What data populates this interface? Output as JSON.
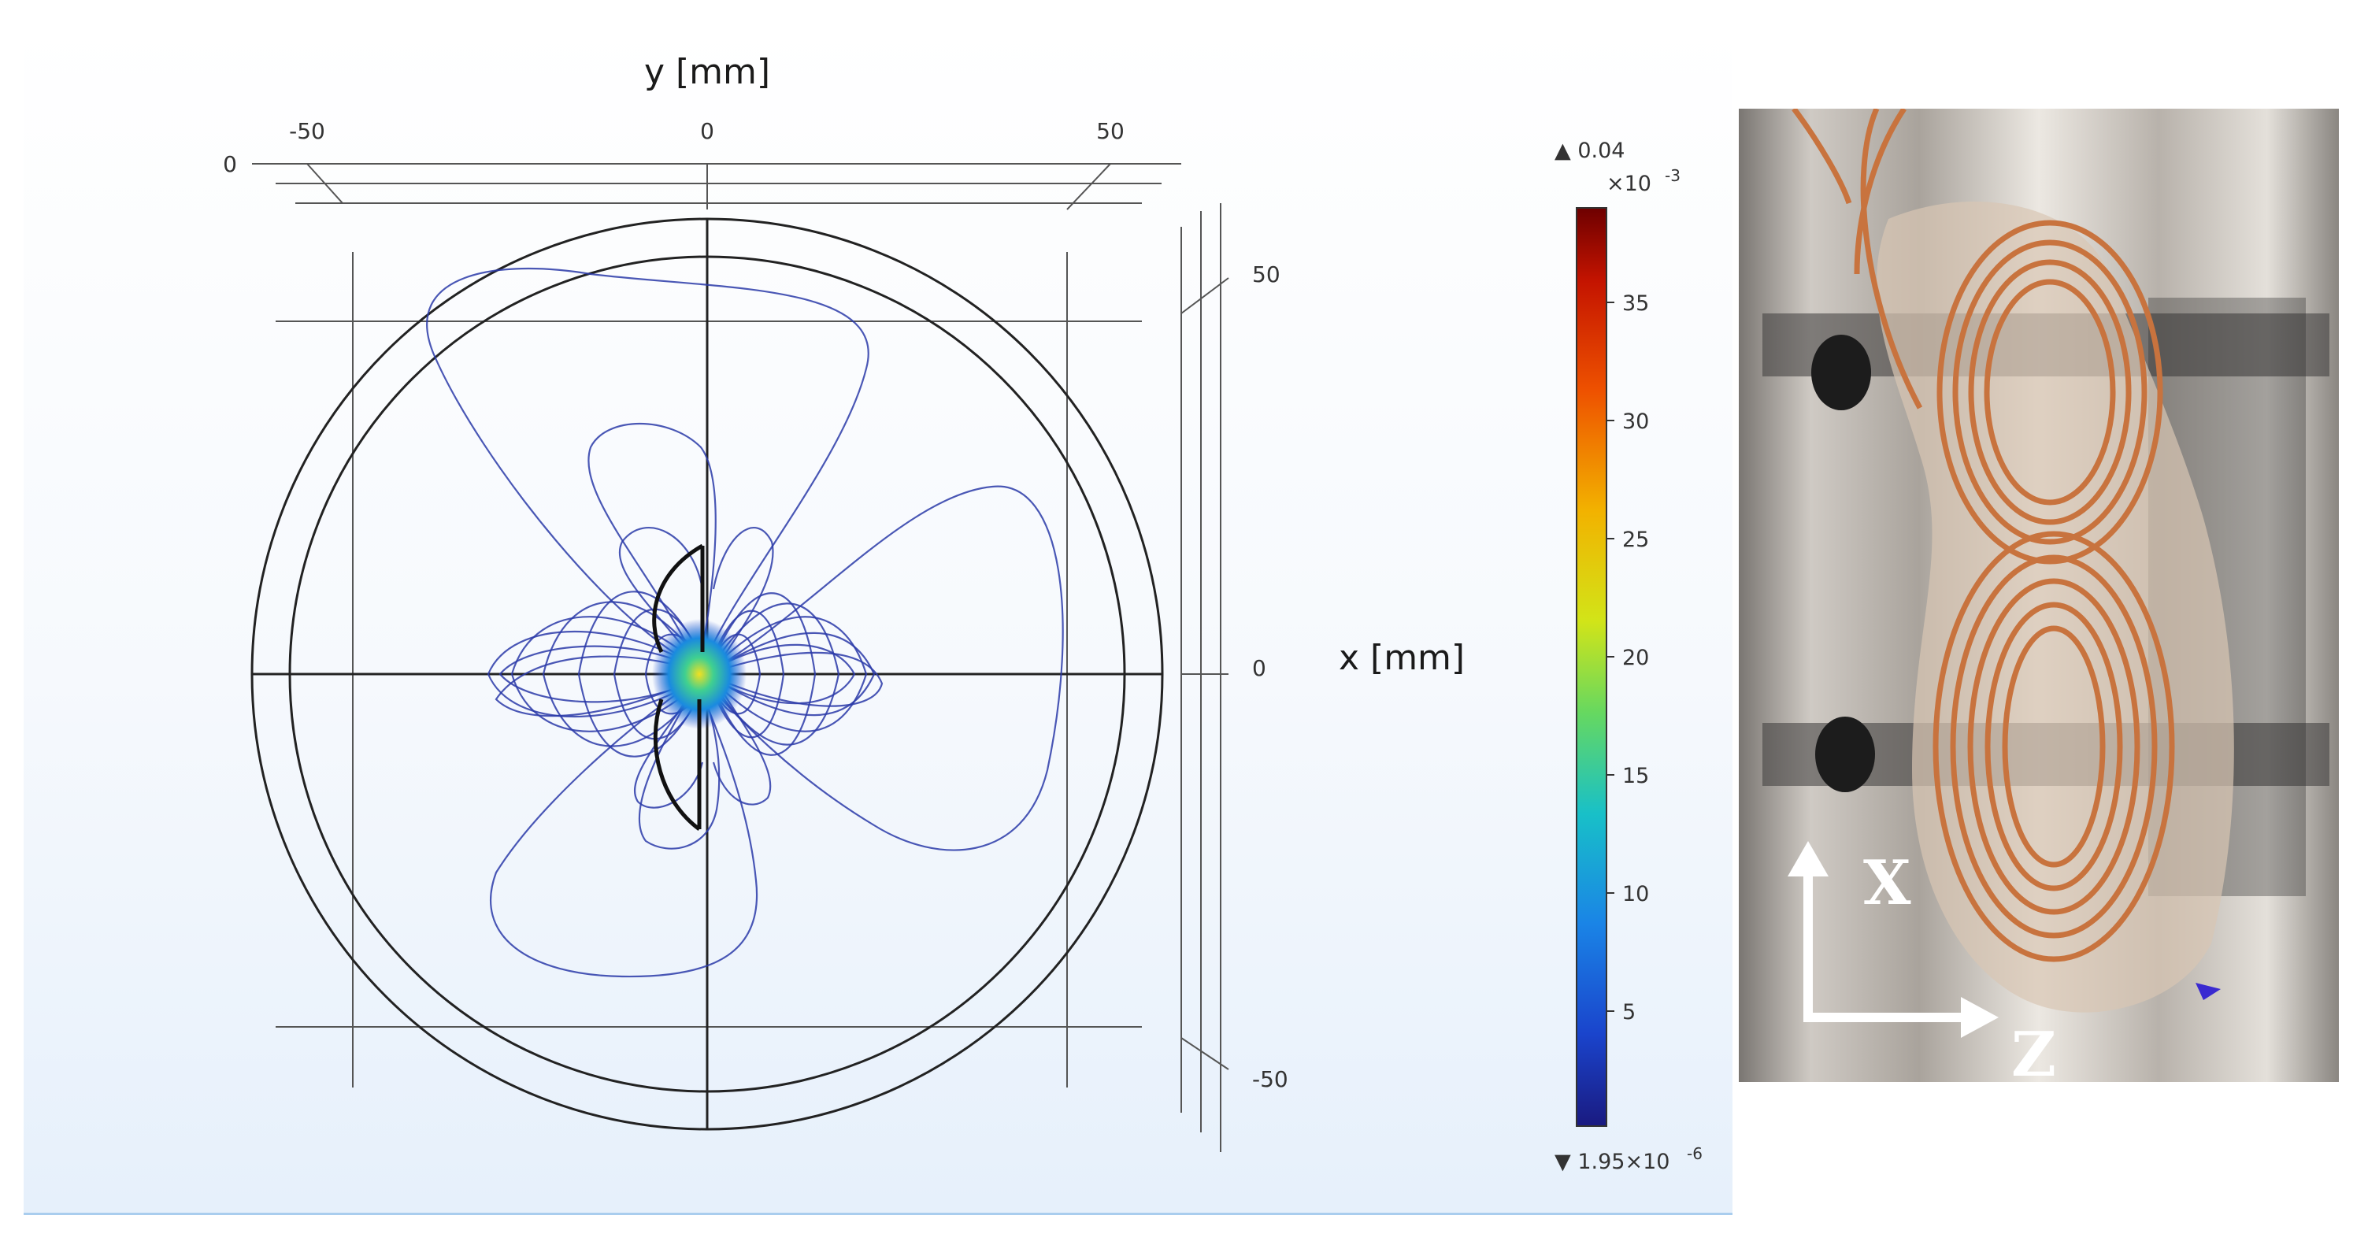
{
  "plot": {
    "y_axis_title": "y [mm]",
    "x_axis_title": "x [mm]",
    "top_ticks": [
      "-50",
      "0",
      "50"
    ],
    "top_corner_tick": "0",
    "right_ticks": [
      "50",
      "0",
      "-50"
    ]
  },
  "colorbar": {
    "max_label": "▲ 0.04",
    "multiplier": "×10",
    "multiplier_exp": "-3",
    "ticks": [
      "35",
      "30",
      "25",
      "20",
      "15",
      "10",
      "5"
    ],
    "min_label": "▼ 1.95×10",
    "min_exp": "-6",
    "colors": [
      "#7a0000",
      "#d01e00",
      "#f06a00",
      "#f5c400",
      "#c0e030",
      "#3ad07a",
      "#1ab8d8",
      "#1a7ae0",
      "#1a3cc8",
      "#1a1a7a"
    ]
  },
  "photo": {
    "label_x": "X",
    "label_z": "Z"
  }
}
